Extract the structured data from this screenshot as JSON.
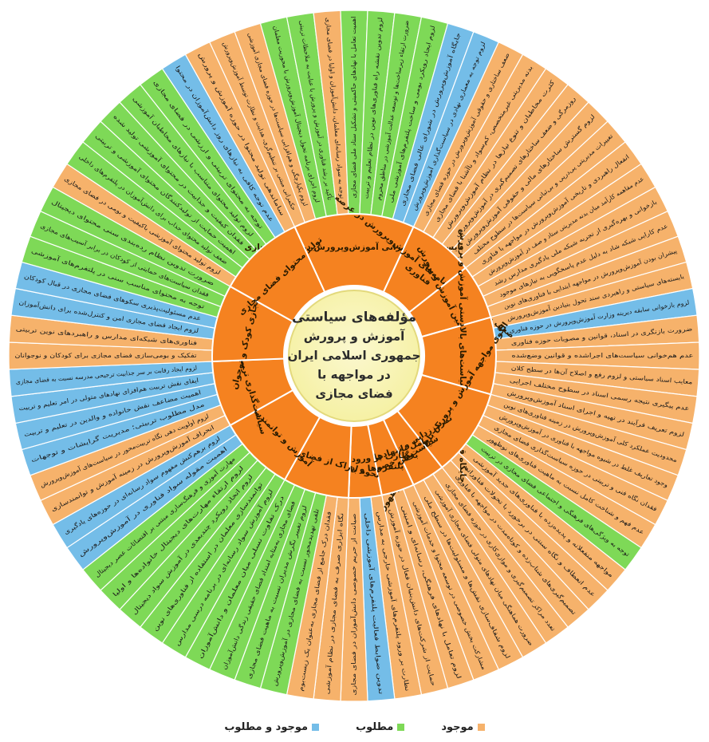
{
  "center": {
    "title_lines": [
      "مؤلفه‌های سیاستی",
      "آموزش و پرورش",
      "جمهوری اسلامی ایران",
      "در مواجهه با",
      "فضای مجازی"
    ]
  },
  "colors": {
    "existing": "#f6b26b",
    "required": "#7ed957",
    "existing_and_required": "#74bde8",
    "ring": "#f58220",
    "center": "#f5f0a0",
    "line": "#ffffff"
  },
  "legend": {
    "existing": "موجود",
    "required": "مطلوب",
    "existing_and_required": "موجود و مطلوب"
  },
  "categories": [
    {
      "label": "بایسته‌های حکمرانی آموزش‌وپرورش در فضای مجازی",
      "items": [
        {
          "text": "حکمرانی مبتنی بر تنظیم‌گری، هدایت و نظارت توسط آموزش‌وپرورش",
          "status": "existing"
        },
        {
          "text": "لزوم یکپارچگی و هم‌افزایی سیاست‌ها در حوزه فضای مجازی آموزشی",
          "status": "existing"
        },
        {
          "text": "لزوم اجرای برنامه تحول دیجیتال آموزش‌وپرورش با محوریت معلمان",
          "status": "required"
        },
        {
          "text": "تأکید بر رشد فناوری در آموزش و پرورش با عنایت به ملاحظات تربیتی",
          "status": "required"
        },
        {
          "text": "توجه به سواد رسانه‌ای معلمان، دانش‌آموزان و اولیا در فضای مجازی",
          "status": "existing"
        },
        {
          "text": "اهمیت تعامل با نهادهای حاکمیتی و تشکیل ستاد ملی فضای مجازی",
          "status": "required"
        },
        {
          "text": "لزوم تدوین نقشه راه فناوری‌های نوین در نظام تعلیم و تربیت",
          "status": "required"
        },
        {
          "text": "ضرورت ارتقاء زیرساخت‌ها و توسعه عدالت آموزشی در مناطق محروم",
          "status": "required"
        },
        {
          "text": "لزوم ایجاد رویکرد بومی و ساخت پلتفرم‌های آموزشی ملی",
          "status": "required"
        },
        {
          "text": "جایگاه آموزش‌وپرورش در شورای عالی فضای مجازی",
          "status": "existing_and_required"
        },
        {
          "text": "لزوم توجه به معماری نهادی در سیاست‌گذاری آموزش‌وپرورش",
          "status": "existing_and_required"
        }
      ]
    },
    {
      "label": "ضعف سیاست‌ها و برنامه‌های آموزش‌وپرورش در عرصه فناوری",
      "items": [
        {
          "text": "ضعف ساختاری و حقوقی آموزش‌وپرورش در حوزه فضای مجازی",
          "status": "existing"
        },
        {
          "text": "بدنه مدیریتی غیرمتخصص، کم‌سواد و ناآشنا با فضای مجازی",
          "status": "existing"
        },
        {
          "text": "کثرت مخاطبان و تنوع نیازها در نظام آموزش‌وپرورش",
          "status": "existing"
        },
        {
          "text": "روزمرگی و ضعف ساختارهای تصمیم‌گیری در آموزش‌وپرورش",
          "status": "existing"
        },
        {
          "text": "لزوم گسترش ساختارهای مالی و حقوقی آموزش‌وپرورش",
          "status": "existing"
        },
        {
          "text": "تغییرات مدیریتی پی‌درپی و بی‌ثباتی سیاست‌ها در سطوح مختلف",
          "status": "existing"
        }
      ]
    },
    {
      "label": "تجربیات پیشین آموزش و پرورش",
      "items": [
        {
          "text": "انفعال راهبردی و تاریخی آموزش‌وپرورش در مواجهه با فناوری",
          "status": "existing"
        },
        {
          "text": "عدم مفاهمه کارآمد میان بدنه مدیریتی ستاد و صف در آموزش‌وپرورش",
          "status": "existing"
        },
        {
          "text": "بازخوانی و بهره‌گیری از تجربه شبکه ملی یادگیری مدارس رشد",
          "status": "existing"
        },
        {
          "text": "عدم کارایی شبکه شاد به دلیل عدم پاسخگویی به نیازهای موجود",
          "status": "existing"
        },
        {
          "text": "پیشران بودن آموزش‌وپرورش در مواجهه ابتدایی با فناوری‌های نوین",
          "status": "existing"
        }
      ]
    },
    {
      "label": "جایگاه قوانین اسناد و سیاست‌های بالادستی آموزش و پرورش",
      "items": [
        {
          "text": "بایسته‌های سیاستی و راهبردی سند تحول بنیادین آموزش‌وپرورش",
          "status": "existing"
        },
        {
          "text": "لزوم بازخوانی سابقه دیرینه وزارت آموزش‌وپرورش در حوزه فناوری",
          "status": "existing_and_required"
        },
        {
          "text": "ضرورت بازنگری در اسناد، قوانین و مصوبات حوزه فناوری",
          "status": "existing"
        },
        {
          "text": "عدم هم‌خوانی سیاست‌های اجراشده و قوانین وضع‌شده",
          "status": "existing"
        },
        {
          "text": "معایب اسناد سیاستی و لزوم رفع و اصلاح آن‌ها در سطح کلان",
          "status": "existing"
        },
        {
          "text": "عدم پیگیری نتیجه رسمی اسناد در سطوح مختلف اجرایی",
          "status": "existing"
        },
        {
          "text": "لزوم تعریف فرآیند در تهیه و اجرای اسناد آموزش‌وپرورش",
          "status": "existing"
        }
      ]
    },
    {
      "label": "الگوی مواجهه آموزش و پرورش با فناوری‌های نوظهور",
      "items": [
        {
          "text": "محدودیت عملکرد کلی آموزش‌وپرورش در زمینه فناوری‌های نوین",
          "status": "existing"
        },
        {
          "text": "وجود تعاریف غلط در شیوه مواجهه با فناوری در آموزش‌وپرورش",
          "status": "existing"
        },
        {
          "text": "فقدان نگاه فنی و تربیتی در حوزه سیاست‌گذاری فضای مجازی",
          "status": "existing"
        },
        {
          "text": "عدم فهم و شناخت کامل نسبت به ماهیت فناوری‌های نوظهور",
          "status": "existing"
        },
        {
          "text": "توجه به ویژگی‌های فرهنگی و اجتماعی فضای مجازی در تربیت",
          "status": "required"
        },
        {
          "text": "مواجهه منفعلانه و پدیده‌زده با فناوری‌های جدید آموزشی",
          "status": "existing"
        },
        {
          "text": "عدم انعطاف و نگاه سنتی در برخورد با تحولات فناورانه",
          "status": "existing"
        },
        {
          "text": "تصمیم‌گیری‌های شتاب‌زده و کوتاه‌مدت در مواجهه با فناوری",
          "status": "existing"
        }
      ]
    },
    {
      "label": "تمرکززدایی و تعدد مراکز سیاست‌گذاری",
      "items": [
        {
          "text": "تعدد مراکز تصمیم‌گیری و موازی‌کاری در حوزه فضای مجازی",
          "status": "existing"
        },
        {
          "text": "ضرورت هماهنگی میان نهادهای متولی فضای مجازی آموزشی",
          "status": "existing"
        },
        {
          "text": "لزوم شفاف‌سازی نقش‌ها و مسئولیت‌ها در سطح ملی",
          "status": "existing"
        }
      ]
    },
    {
      "label": "تعامل با نهادهای دیگر و بخش خصوصی",
      "items": [
        {
          "text": "مشارکت بخش خصوصی در توسعه محتوا و خدمات آموزشی",
          "status": "existing"
        },
        {
          "text": "لزوم تعامل با نهادهای فرهنگی، رسانه‌ای و امنیتی",
          "status": "existing"
        },
        {
          "text": "حمایت از شرکت‌های دانش‌بنیان فعال در حوزه آموزش",
          "status": "existing"
        }
      ]
    },
    {
      "label": "نظارت بر ورود و فعالیت پلتفرم‌ها و بازیگران",
      "items": [
        {
          "text": "نظارت بر ورود پلتفرم‌های آموزشی خارجی به مدارس",
          "status": "existing"
        },
        {
          "text": "تدوین ضوابط فعالیت پلتفرم‌های آموزشی داخلی",
          "status": "existing_and_required"
        },
        {
          "text": "صیانت از حریم خصوصی دانش‌آموزان در فضای مجازی",
          "status": "existing"
        }
      ]
    },
    {
      "label": "نحوه ادراک از فضای مجازی",
      "items": [
        {
          "text": "نگاه ابزاری صرف به فضای مجازی در نظام آموزشی",
          "status": "existing"
        },
        {
          "text": "فقدان درک جامع از فضای مجازی به‌عنوان یک زیست‌بوم",
          "status": "existing"
        },
        {
          "text": "تلقی تهدیدمحور نسبت به فضای مجازی در آموزش‌وپرورش",
          "status": "required"
        },
        {
          "text": "لزوم تغییر نگرش مدیران نسبت به ماهیت فضای مجازی",
          "status": "required"
        },
        {
          "text": "فضای مجازی به‌مثابه امتداد فضای حقیقی زندگی دانش‌آموزان",
          "status": "required"
        },
        {
          "text": "درک تفاوت نسلی میان معلمان و دانش‌آموزان",
          "status": "required"
        }
      ]
    },
    {
      "label": "آموزش و توانمندسازی",
      "items": [
        {
          "text": "لزوم آموزش سواد رسانه‌ای در برنامه درسی مدارس",
          "status": "required"
        },
        {
          "text": "توانمندسازی معلمان در استفاده از فناوری‌های نوین",
          "status": "required"
        },
        {
          "text": "لزوم اتخاذ رویکرد چندبعدی در آموزش سواد دیجیتال",
          "status": "required"
        },
        {
          "text": "لزوم ارتقاء مهارت‌های دیجیتال خانواده‌ها و اولیا",
          "status": "required"
        },
        {
          "text": "مهارت آموزی و فرهنگ‌سازی مبتنی بر اقتضائات عصر دیجیتال",
          "status": "required"
        },
        {
          "text": "اهمیت مقوله سواد فناوری در آموزش‌وپرورش",
          "status": "existing_and_required"
        },
        {
          "text": "لزوم برهم‌کنش مفهوم سواد رسانه‌ای در حوزه‌های یادگیری",
          "status": "existing_and_required"
        }
      ]
    },
    {
      "label": "سیاست‌گذاری تربیت مبنا",
      "items": [
        {
          "text": "انحراف آموزش‌وپرورش در زمینه آموزش و توانمندسازی",
          "status": "existing"
        },
        {
          "text": "لزوم اولویت دهی نگاه تربیت‌محور در سیاست‌های آموزش‌وپرورش",
          "status": "existing"
        },
        {
          "text": "مدل مطلوب تربیتی؛ مدیریت گرایشات و توجهات",
          "status": "existing_and_required"
        },
        {
          "text": "اهمیت مضاعف نقش خانواده و والدین در تعلیم و تربیت",
          "status": "existing_and_required"
        },
        {
          "text": "ایفای نقش تربیت هم‌افزای نهادهای متولی در امر تعلیم و تربیت",
          "status": "existing_and_required"
        },
        {
          "text": "لزوم ایجاد رقابت بر سر جذابیت ترجیحی مدرسه نسبت به فضای مجازی",
          "status": "existing_and_required"
        }
      ]
    },
    {
      "label": "فضای مجازی کودک و نوجوان",
      "items": [
        {
          "text": "تفکیک و بومی‌سازی فضای مجازی برای کودکان و نوجوانان",
          "status": "existing"
        },
        {
          "text": "فناوری‌های شبکه‌ای مدارس و راهبردهای نوین تربیتی",
          "status": "existing"
        },
        {
          "text": "لزوم ایجاد فضای مجازی امن و کنترل‌شده برای دانش‌آموزان",
          "status": "existing_and_required"
        },
        {
          "text": "عدم مسئولیت‌پذیری سکوهای فضای مجازی در قبال کودکان",
          "status": "existing_and_required"
        },
        {
          "text": "توجه به محتوای مناسب سنی در پلتفرم‌های آموزشی",
          "status": "required"
        },
        {
          "text": "فقدان سیاست‌های حمایتی از کودکان در برابر آسیب‌های مجازی",
          "status": "required"
        },
        {
          "text": "ضرورت تدوین نظام رده‌بندی سنی محتوای دیجیتال",
          "status": "required"
        }
      ]
    },
    {
      "label": "تولید محتوای فضای مجازی",
      "items": [
        {
          "text": "لزوم تولید محتوای آموزشی باکیفیت و بومی در فضای مجازی",
          "status": "existing"
        },
        {
          "text": "ضعف تولید محتوای جذاب برای دانش‌آموزان در پلتفرم‌های داخلی",
          "status": "required"
        },
        {
          "text": "اهمیت حمایت از تولیدکنندگان محتوای آموزشی و تربیتی",
          "status": "required"
        },
        {
          "text": "فقدان کیفیت و جذابیت در محتوای آموزشی تولید شده",
          "status": "required"
        },
        {
          "text": "لزوم تولید محتوای متناسب با نیازهای مخاطبان آموزشی",
          "status": "required"
        },
        {
          "text": "توجه به محتوای تربیتی و ارزشی در فضای مجازی",
          "status": "required"
        },
        {
          "text": "عدم توجه کافی به نیازهای روز دانش‌آموزان در محتوا",
          "status": "existing_and_required"
        },
        {
          "text": "ساماندهی تولید محتوا در حوزه آموزش و پرورش",
          "status": "existing"
        }
      ]
    }
  ]
}
